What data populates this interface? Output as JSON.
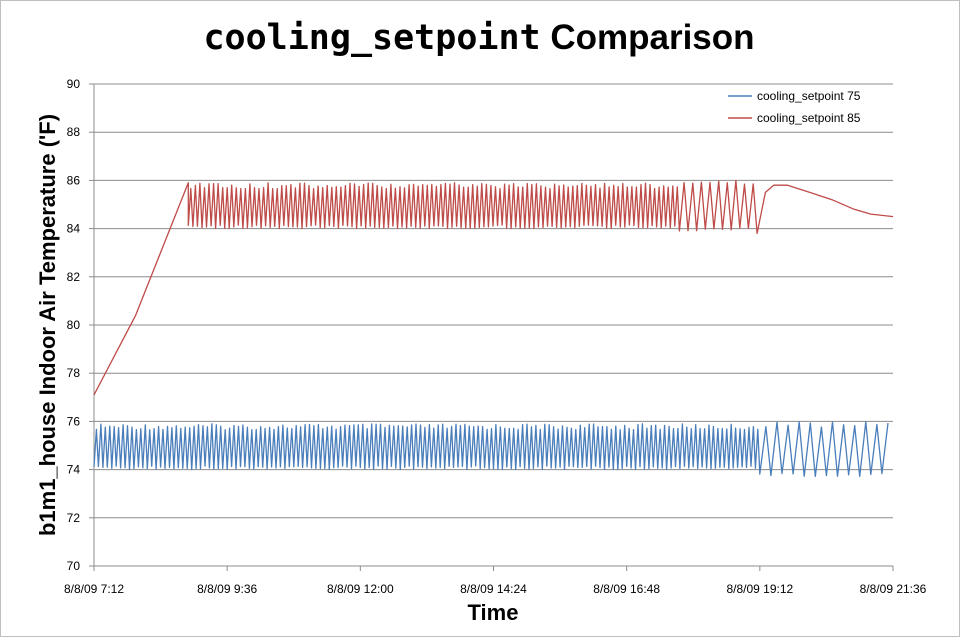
{
  "chart_data": {
    "type": "line",
    "title_mono": "cooling_setpoint",
    "title_rest": " Comparison",
    "xlabel": "Time",
    "ylabel": "b1m1_house Indoor Air Temperature ('F)",
    "ylim": [
      70,
      90
    ],
    "yticks": [
      "70",
      "72",
      "74",
      "76",
      "78",
      "80",
      "82",
      "84",
      "86",
      "88",
      "90"
    ],
    "xticks": [
      "8/8/09 7:12",
      "8/8/09 9:36",
      "8/8/09 12:00",
      "8/8/09 14:24",
      "8/8/09 16:48",
      "8/8/09 19:12",
      "8/8/09 21:36"
    ],
    "x_range_hours": [
      7.2,
      21.6
    ],
    "grid": "horizontal",
    "legend_position": "top-right",
    "series": [
      {
        "name": "cooling_setpoint 75",
        "color": "#4a7ebb",
        "segments": [
          {
            "x0": 7.2,
            "x1": 19.2,
            "cycles": 150,
            "low": 74.0,
            "high": 75.9
          },
          {
            "x0": 19.2,
            "x1": 21.6,
            "cycles": 12,
            "low": 73.7,
            "high": 76.0
          }
        ]
      },
      {
        "name": "cooling_setpoint 85",
        "color": "#be4b48",
        "points": [
          [
            7.2,
            77.1
          ],
          [
            7.95,
            80.4
          ],
          [
            8.9,
            85.9
          ]
        ],
        "segments": [
          {
            "x0": 8.9,
            "x1": 17.75,
            "cycles": 108,
            "low": 84.0,
            "high": 85.9
          },
          {
            "x0": 17.75,
            "x1": 19.15,
            "cycles": 9,
            "low": 83.9,
            "high": 86.0
          }
        ],
        "tail": [
          [
            19.15,
            83.8
          ],
          [
            19.3,
            85.5
          ],
          [
            19.45,
            85.8
          ],
          [
            19.7,
            85.8
          ],
          [
            20.1,
            85.5
          ],
          [
            20.5,
            85.2
          ],
          [
            20.9,
            84.8
          ],
          [
            21.2,
            84.6
          ],
          [
            21.6,
            84.5
          ]
        ]
      }
    ]
  }
}
